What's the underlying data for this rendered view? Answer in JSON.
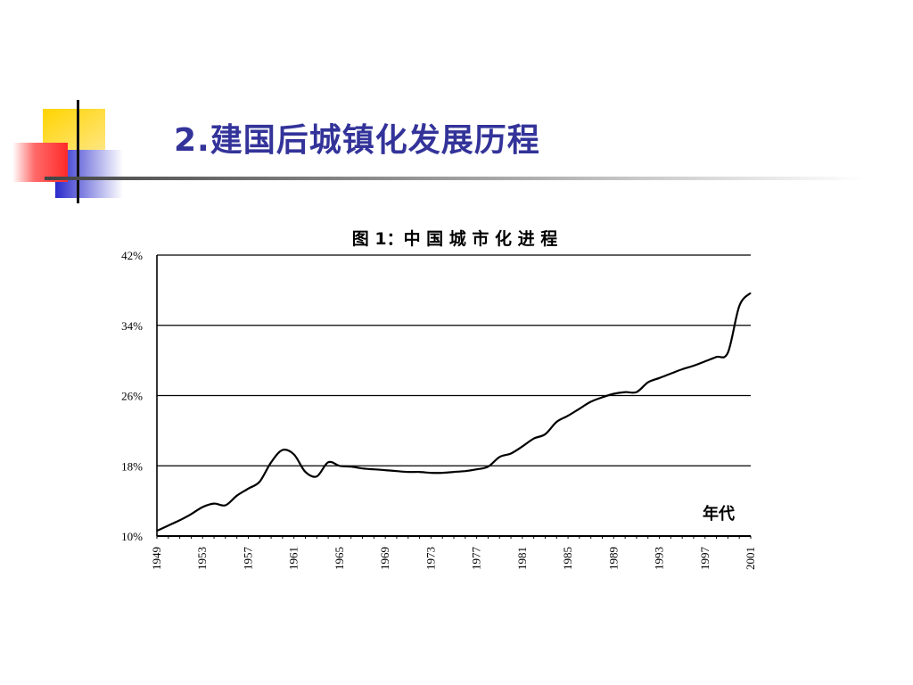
{
  "slide": {
    "title": "2.建国后城镇化发展历程"
  },
  "colors": {
    "title": "#33339a",
    "accent_yellow": "#ffcc00",
    "accent_blue": "#3333cc",
    "accent_red": "#ff3333",
    "line": "#000000"
  },
  "chart_data": {
    "type": "line",
    "title": "图 1：中 国 城 市 化 进 程",
    "xlabel": "年代",
    "ylabel": "",
    "xlim": [
      1949,
      2001
    ],
    "ylim": [
      10,
      42
    ],
    "yticks": [
      10,
      18,
      26,
      34,
      42
    ],
    "ytick_labels": [
      "10%",
      "18%",
      "26%",
      "34%",
      "42%"
    ],
    "xticks": [
      1949,
      1953,
      1957,
      1961,
      1965,
      1969,
      1973,
      1977,
      1981,
      1985,
      1989,
      1993,
      1997,
      2001
    ],
    "xtick_labels": [
      "1949",
      "1953",
      "1957",
      "1961",
      "1965",
      "1969",
      "1973",
      "1977",
      "1981",
      "1985",
      "1989",
      "1993",
      "1997",
      "2001"
    ],
    "grid": true,
    "series": [
      {
        "x": [
          1949,
          1950,
          1951,
          1952,
          1953,
          1954,
          1955,
          1956,
          1957,
          1958,
          1959,
          1960,
          1961,
          1962,
          1963,
          1964,
          1965,
          1966,
          1967,
          1968,
          1969,
          1970,
          1971,
          1972,
          1973,
          1974,
          1975,
          1976,
          1977,
          1978,
          1979,
          1980,
          1981,
          1982,
          1983,
          1984,
          1985,
          1986,
          1987,
          1988,
          1989,
          1990,
          1991,
          1992,
          1993,
          1994,
          1995,
          1996,
          1997,
          1998,
          1999,
          2000,
          2001
        ],
        "values": [
          10.6,
          11.2,
          11.8,
          12.5,
          13.3,
          13.7,
          13.5,
          14.6,
          15.4,
          16.2,
          18.4,
          19.8,
          19.3,
          17.3,
          16.8,
          18.4,
          18.0,
          17.9,
          17.7,
          17.6,
          17.5,
          17.4,
          17.3,
          17.3,
          17.2,
          17.2,
          17.3,
          17.4,
          17.6,
          17.9,
          19.0,
          19.4,
          20.2,
          21.1,
          21.6,
          23.0,
          23.7,
          24.5,
          25.3,
          25.8,
          26.2,
          26.4,
          26.4,
          27.5,
          28.0,
          28.5,
          29.0,
          29.4,
          29.9,
          30.4,
          30.9,
          36.2,
          37.7
        ]
      }
    ]
  }
}
